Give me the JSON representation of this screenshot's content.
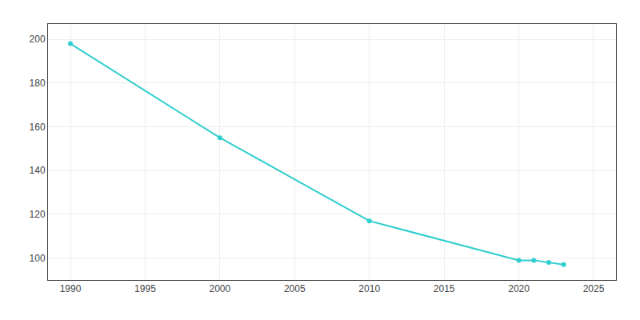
{
  "chart_data": {
    "type": "line",
    "x": [
      1990,
      2000,
      2010,
      2020,
      2021,
      2022,
      2023
    ],
    "values": [
      198,
      155,
      117,
      99,
      99,
      98,
      97
    ],
    "color": "#2ecece",
    "marker": "circle",
    "xlim": [
      1988.5,
      2026.5
    ],
    "ylim": [
      90,
      207
    ],
    "xticks": [
      1990,
      1995,
      2000,
      2005,
      2010,
      2015,
      2020,
      2025
    ],
    "yticks": [
      100,
      120,
      140,
      160,
      180,
      200
    ],
    "grid": true
  }
}
